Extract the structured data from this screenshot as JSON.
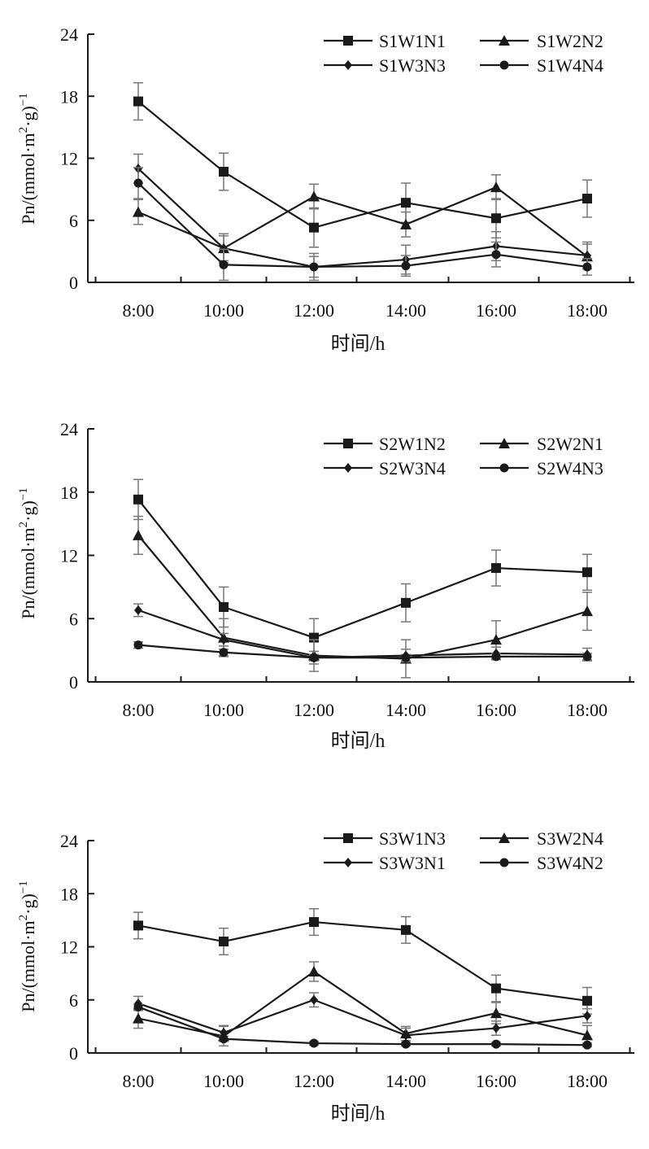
{
  "chart_data": [
    {
      "type": "line",
      "xlabel": "时间/h",
      "ylabel_main": "Pn/(mmol·m",
      "ylabel_sup1": "2",
      "ylabel_mid": "·g)",
      "ylabel_sup2": "−1",
      "categories": [
        "8:00",
        "10:00",
        "12:00",
        "14:00",
        "16:00",
        "18:00"
      ],
      "ylim": [
        0,
        24
      ],
      "yticks": [
        "0",
        "6",
        "12",
        "18",
        "24"
      ],
      "legend_position": "top-right",
      "series": [
        {
          "name": "S1W1N1",
          "marker": "square",
          "values": [
            17.5,
            10.7,
            5.3,
            7.7,
            6.2,
            8.1
          ],
          "errors": [
            1.8,
            1.8,
            1.9,
            1.9,
            1.9,
            1.8
          ]
        },
        {
          "name": "S1W2N2",
          "marker": "triangle",
          "values": [
            6.8,
            3.3,
            8.3,
            5.6,
            9.2,
            2.5
          ],
          "errors": [
            1.2,
            1.2,
            1.2,
            1.2,
            1.2,
            1.2
          ]
        },
        {
          "name": "S1W3N3",
          "marker": "diamond",
          "values": [
            11.0,
            3.3,
            1.5,
            2.2,
            3.5,
            2.6
          ],
          "errors": [
            1.4,
            1.4,
            1.3,
            1.4,
            1.4,
            1.3
          ]
        },
        {
          "name": "S1W4N4",
          "marker": "circle",
          "values": [
            9.6,
            1.7,
            1.5,
            1.6,
            2.7,
            1.5
          ],
          "errors": [
            1.5,
            1.5,
            1.0,
            1.0,
            1.2,
            0.8
          ]
        }
      ]
    },
    {
      "type": "line",
      "xlabel": "时间/h",
      "ylabel_main": "Pn/(mmol·m",
      "ylabel_sup1": "2",
      "ylabel_mid": "·g)",
      "ylabel_sup2": "−1",
      "categories": [
        "8:00",
        "10:00",
        "12:00",
        "14:00",
        "16:00",
        "18:00"
      ],
      "ylim": [
        0,
        24
      ],
      "yticks": [
        "0",
        "6",
        "12",
        "18",
        "24"
      ],
      "legend_position": "top-right",
      "series": [
        {
          "name": "S2W1N2",
          "marker": "square",
          "values": [
            17.3,
            7.1,
            4.2,
            7.5,
            10.8,
            10.4
          ],
          "errors": [
            1.9,
            1.9,
            1.8,
            1.8,
            1.7,
            1.7
          ]
        },
        {
          "name": "S2W2N1",
          "marker": "triangle",
          "values": [
            13.9,
            4.2,
            2.5,
            2.2,
            4.0,
            6.7
          ],
          "errors": [
            1.8,
            1.8,
            1.5,
            1.8,
            1.8,
            1.8
          ]
        },
        {
          "name": "S2W3N4",
          "marker": "diamond",
          "values": [
            6.8,
            4.0,
            2.3,
            2.5,
            2.7,
            2.6
          ],
          "errors": [
            0.6,
            0.6,
            0.6,
            0.6,
            0.6,
            0.6
          ]
        },
        {
          "name": "S2W4N3",
          "marker": "circle",
          "values": [
            3.5,
            2.8,
            2.3,
            2.3,
            2.4,
            2.4
          ],
          "errors": [
            0.3,
            0.3,
            0.3,
            0.3,
            0.3,
            0.3
          ]
        }
      ]
    },
    {
      "type": "line",
      "xlabel": "时间/h",
      "ylabel_main": "Pn/(mmol·m",
      "ylabel_sup1": "2",
      "ylabel_mid": "·g)",
      "ylabel_sup2": "−1",
      "categories": [
        "8:00",
        "10:00",
        "12:00",
        "14:00",
        "16:00",
        "18:00"
      ],
      "ylim": [
        0,
        24
      ],
      "yticks": [
        "0",
        "6",
        "12",
        "18",
        "24"
      ],
      "legend_position": "top-right",
      "series": [
        {
          "name": "S3W1N3",
          "marker": "square",
          "values": [
            14.4,
            12.6,
            14.8,
            13.9,
            7.3,
            5.9
          ],
          "errors": [
            1.5,
            1.5,
            1.5,
            1.5,
            1.5,
            1.5
          ]
        },
        {
          "name": "S3W2N4",
          "marker": "triangle",
          "values": [
            3.9,
            1.9,
            9.2,
            2.2,
            4.5,
            2.0
          ],
          "errors": [
            1.1,
            1.1,
            1.1,
            0.8,
            1.2,
            1.1
          ]
        },
        {
          "name": "S3W3N1",
          "marker": "diamond",
          "values": [
            5.6,
            2.3,
            6.0,
            2.0,
            2.8,
            4.2
          ],
          "errors": [
            0.8,
            0.8,
            0.8,
            0.8,
            0.8,
            0.8
          ]
        },
        {
          "name": "S3W4N2",
          "marker": "circle",
          "values": [
            5.2,
            1.6,
            1.1,
            1.0,
            1.0,
            0.9
          ],
          "errors": [
            0.3,
            0.3,
            0.2,
            0.2,
            0.2,
            0.2
          ]
        }
      ]
    }
  ]
}
